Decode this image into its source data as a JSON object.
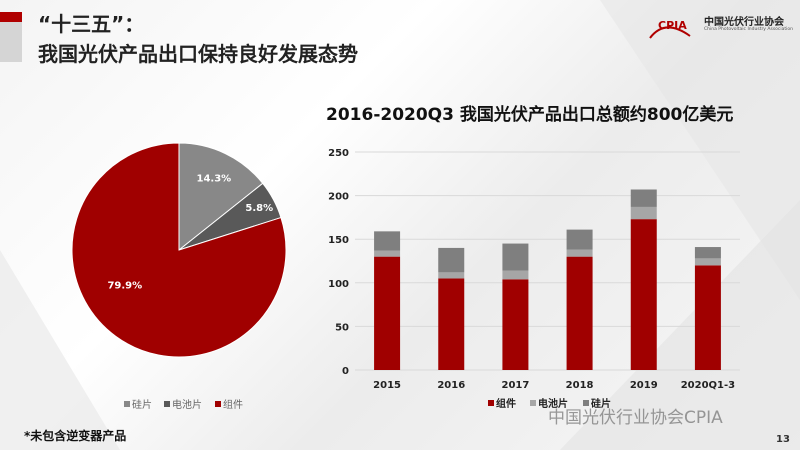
{
  "header": {
    "title_line1": "“十三五”：",
    "title_line2": "我国光伏产品出口保持良好发展态势"
  },
  "logo": {
    "mark": "CPIA",
    "name_cn": "中国光伏行业协会",
    "name_en": "China Photovoltaic Industry Association"
  },
  "colors": {
    "module": "#a00000",
    "cell": "#a6a6a6",
    "wafer": "#7f7f7f",
    "pie_wafer": "#888888",
    "pie_cell": "#595959"
  },
  "chart_data": [
    {
      "type": "pie",
      "title": "",
      "slices": [
        {
          "name": "硅片",
          "value": 14.3,
          "label": "14.3%"
        },
        {
          "name": "电池片",
          "value": 5.8,
          "label": "5.8%"
        },
        {
          "name": "组件",
          "value": 79.9,
          "label": "79.9%"
        }
      ],
      "legend_position": "bottom"
    },
    {
      "type": "bar",
      "stacked": true,
      "title": "2016-2020Q3 我国光伏产品出口总额约800亿美元",
      "categories": [
        "2015",
        "2016",
        "2017",
        "2018",
        "2019",
        "2020Q1-3"
      ],
      "series": [
        {
          "name": "组件",
          "values": [
            130,
            105,
            104,
            130,
            173,
            120
          ]
        },
        {
          "name": "电池片",
          "values": [
            7,
            7,
            10,
            8,
            14,
            8
          ]
        },
        {
          "name": "硅片",
          "values": [
            22,
            28,
            31,
            23,
            20,
            13
          ]
        }
      ],
      "ylim": [
        0,
        250
      ],
      "yticks": [
        "0",
        "50",
        "100",
        "150",
        "200",
        "250"
      ],
      "grid": true,
      "legend_position": "bottom"
    }
  ],
  "footnote": "*未包含逆变器产品",
  "watermark": "中国光伏行业协会CPIA",
  "page_number": "13"
}
